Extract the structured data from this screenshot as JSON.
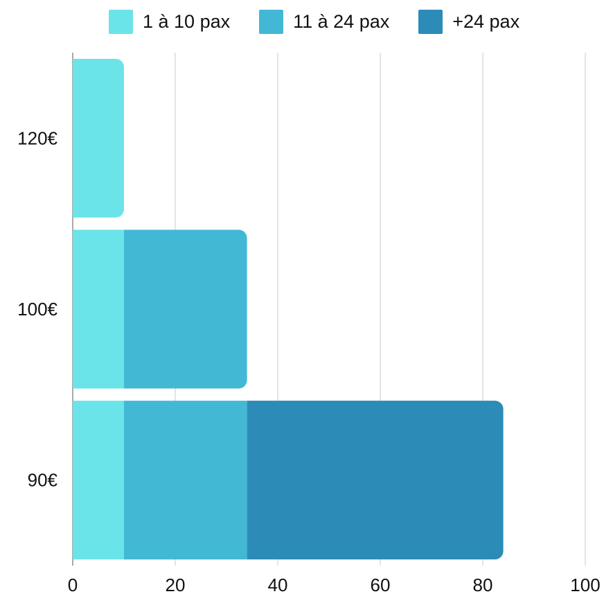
{
  "chart_data": {
    "type": "bar",
    "orientation": "horizontal",
    "stacked": true,
    "title": "",
    "xlabel": "",
    "ylabel": "",
    "categories": [
      "120€",
      "100€",
      "90€"
    ],
    "series": [
      {
        "name": "1 à 10 pax",
        "color": "#6ae4e8",
        "values": [
          10,
          10,
          10
        ]
      },
      {
        "name": "11 à 24 pax",
        "color": "#42b8d5",
        "values": [
          0,
          24,
          24
        ]
      },
      {
        "name": "+24 pax",
        "color": "#2d8bb8",
        "values": [
          0,
          0,
          50
        ]
      }
    ],
    "xlim": [
      0,
      100
    ],
    "xticks": [
      "0",
      "20",
      "40",
      "60",
      "80",
      "100"
    ],
    "grid": true,
    "legend_position": "top"
  }
}
